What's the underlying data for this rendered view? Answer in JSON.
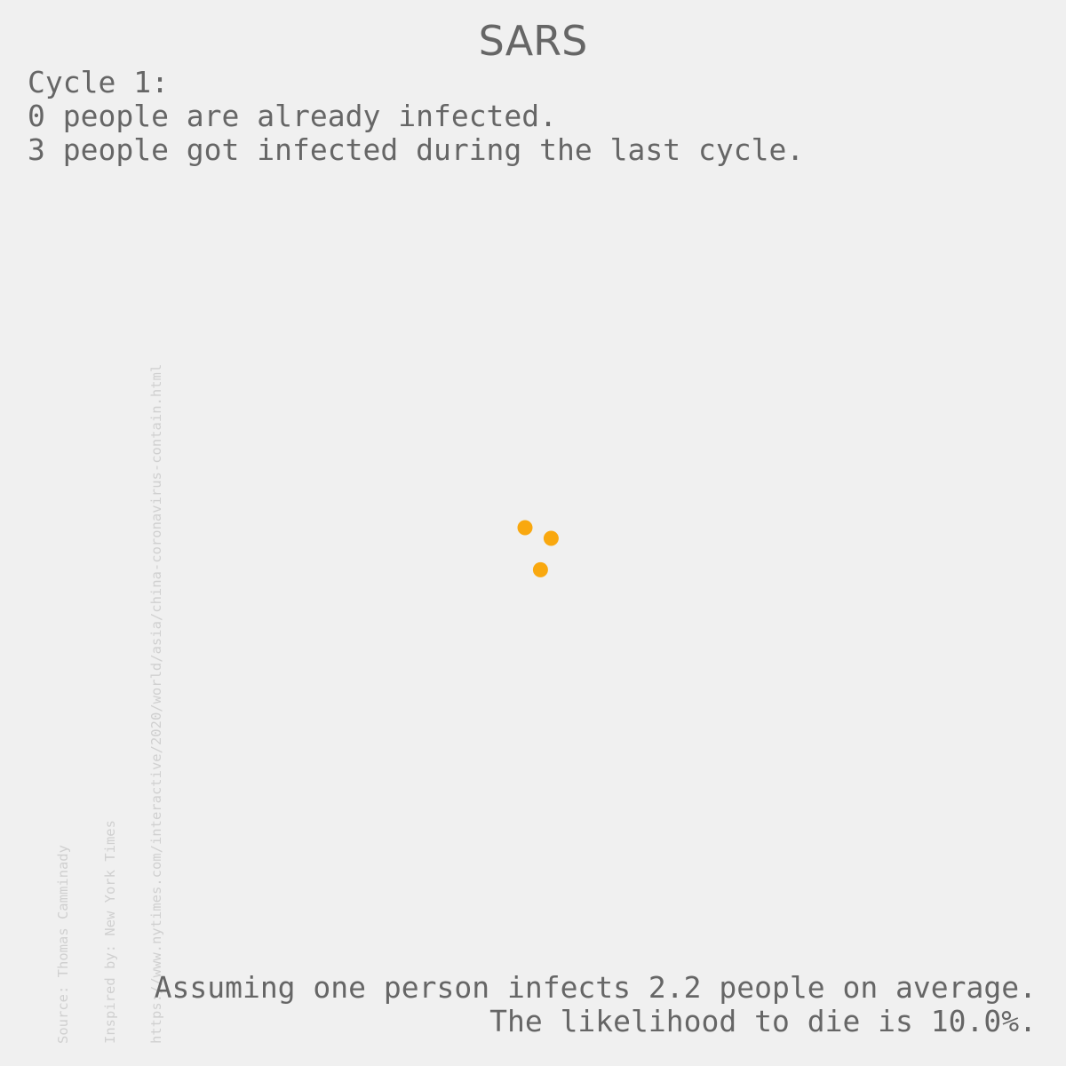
{
  "title": "SARS",
  "status": {
    "cycle_line": "Cycle 1:",
    "already_infected_line": "0 people are already infected.",
    "new_infected_line": "3 people got infected during the last cycle."
  },
  "footer": {
    "r0_line": "Assuming one person infects 2.2 people on average.",
    "death_line": "The likelihood to die is 10.0%."
  },
  "source": {
    "line1": "Source: Thomas Camminady",
    "line2": "Inspired by: New York Times",
    "line3": "https://www.nytimes.com/interactive/2020/world/asia/china-coronavirus-contain.html"
  },
  "colors": {
    "background": "#f0f0f0",
    "text": "#666666",
    "source_text": "#d0d0d0",
    "infected": "#f9a80f"
  },
  "chart_data": {
    "type": "scatter",
    "title": "SARS",
    "xlabel": "",
    "ylabel": "",
    "xlim": [
      -10,
      10
    ],
    "ylim": [
      -10,
      10
    ],
    "grid": false,
    "axes_visible": false,
    "series": [
      {
        "color": "#f9a80f",
        "points": [
          {
            "x": -0.15,
            "y": 0.1
          },
          {
            "x": 0.34,
            "y": -0.1
          },
          {
            "x": 0.14,
            "y": -0.69
          }
        ]
      }
    ]
  }
}
